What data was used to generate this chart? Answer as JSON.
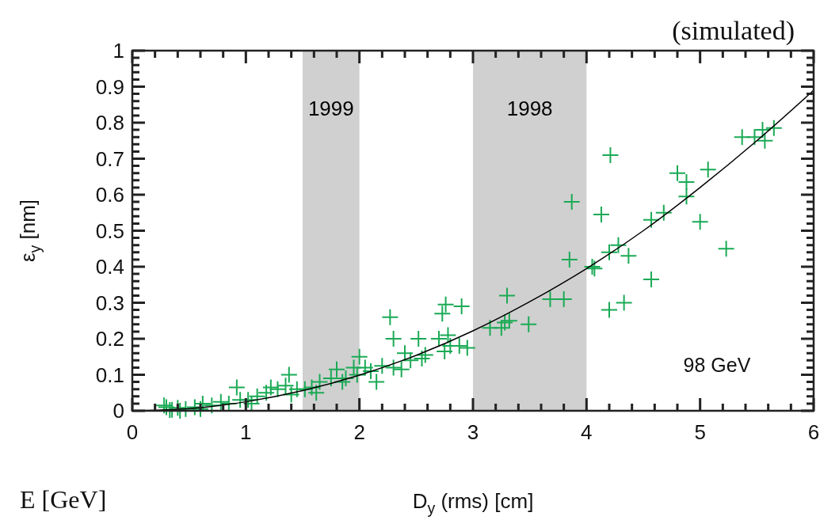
{
  "chart_data": {
    "type": "scatter",
    "xlabel": "D$_{y}$ (rms) [cm]",
    "ylabel": "ε$_{y}$ [nm]",
    "xlim": [
      0,
      6
    ],
    "ylim": [
      0,
      1
    ],
    "xticks": [
      0,
      1,
      2,
      3,
      4,
      5,
      6
    ],
    "yticks": [
      0,
      0.1,
      0.2,
      0.3,
      0.4,
      0.5,
      0.6,
      0.7,
      0.8,
      0.9,
      1
    ],
    "grid": false,
    "marker": "cross",
    "annotations": [
      "(simulated)",
      "98 GeV",
      "E [GeV]"
    ],
    "bands": [
      {
        "axis": "x",
        "from": 1.5,
        "to": 2,
        "label": "1999",
        "color": "#d0d0d0"
      },
      {
        "axis": "x",
        "from": 3,
        "to": 4,
        "label": "1998",
        "color": "#d0d0d0"
      }
    ],
    "series": [
      {
        "type": "scatter",
        "color": "#1aaa55",
        "x": [
          5.65,
          5.55,
          5.57,
          5.48,
          5.37,
          5.07,
          4.88,
          4.8,
          4.88,
          5.0,
          5.23,
          4.68,
          4.57,
          4.57,
          4.37,
          4.28,
          4.2,
          4.13,
          4.21,
          4.2,
          4.33,
          4.05,
          4.07,
          3.87,
          3.85,
          3.8,
          3.68,
          3.49,
          3.3,
          3.32,
          3.28,
          3.25,
          3.15,
          2.95,
          2.9,
          2.88,
          2.8,
          2.76,
          2.73,
          2.78,
          2.7,
          2.75,
          2.58,
          2.52,
          2.55,
          2.45,
          2.37,
          2.3,
          2.27,
          2.3,
          2.2,
          2.1,
          2.0,
          1.98,
          1.88,
          1.85,
          1.8,
          1.75,
          1.65,
          1.58,
          1.52,
          1.45,
          1.38,
          1.35,
          1.28,
          1.22,
          1.18,
          1.1,
          1.02,
          0.92,
          0.95,
          0.85,
          0.78,
          0.7,
          0.62,
          0.55,
          0.47,
          0.4,
          0.35,
          0.3,
          0.28,
          0.6,
          0.42,
          0.33,
          2.05,
          2.4,
          1.95,
          2.15,
          1.62,
          1.4,
          1.05
        ],
        "values": [
          0.785,
          0.78,
          0.75,
          0.76,
          0.76,
          0.67,
          0.635,
          0.66,
          0.595,
          0.525,
          0.45,
          0.55,
          0.53,
          0.365,
          0.43,
          0.46,
          0.44,
          0.545,
          0.71,
          0.28,
          0.3,
          0.4,
          0.395,
          0.58,
          0.42,
          0.31,
          0.31,
          0.24,
          0.32,
          0.25,
          0.245,
          0.23,
          0.23,
          0.175,
          0.29,
          0.18,
          0.18,
          0.295,
          0.27,
          0.21,
          0.2,
          0.165,
          0.155,
          0.2,
          0.145,
          0.14,
          0.115,
          0.2,
          0.26,
          0.12,
          0.125,
          0.11,
          0.15,
          0.1,
          0.09,
          0.08,
          0.115,
          0.09,
          0.08,
          0.065,
          0.06,
          0.06,
          0.1,
          0.07,
          0.06,
          0.065,
          0.05,
          0.04,
          0.03,
          0.065,
          0.03,
          0.02,
          0.025,
          0.015,
          0.02,
          0.01,
          0.005,
          0.008,
          0.003,
          0.01,
          0.015,
          0.005,
          0.0,
          0.002,
          0.12,
          0.16,
          0.12,
          0.08,
          0.05,
          0.045,
          0.02
        ]
      },
      {
        "type": "line",
        "color": "#000000",
        "marker": "none",
        "x": [
          0,
          0.5,
          1,
          1.5,
          2,
          2.5,
          3,
          3.5,
          4,
          4.5,
          5,
          5.5,
          6
        ],
        "values": [
          0,
          0.006,
          0.025,
          0.056,
          0.099,
          0.154,
          0.222,
          0.303,
          0.395,
          0.5,
          0.62,
          0.75,
          0.89
        ]
      }
    ]
  }
}
